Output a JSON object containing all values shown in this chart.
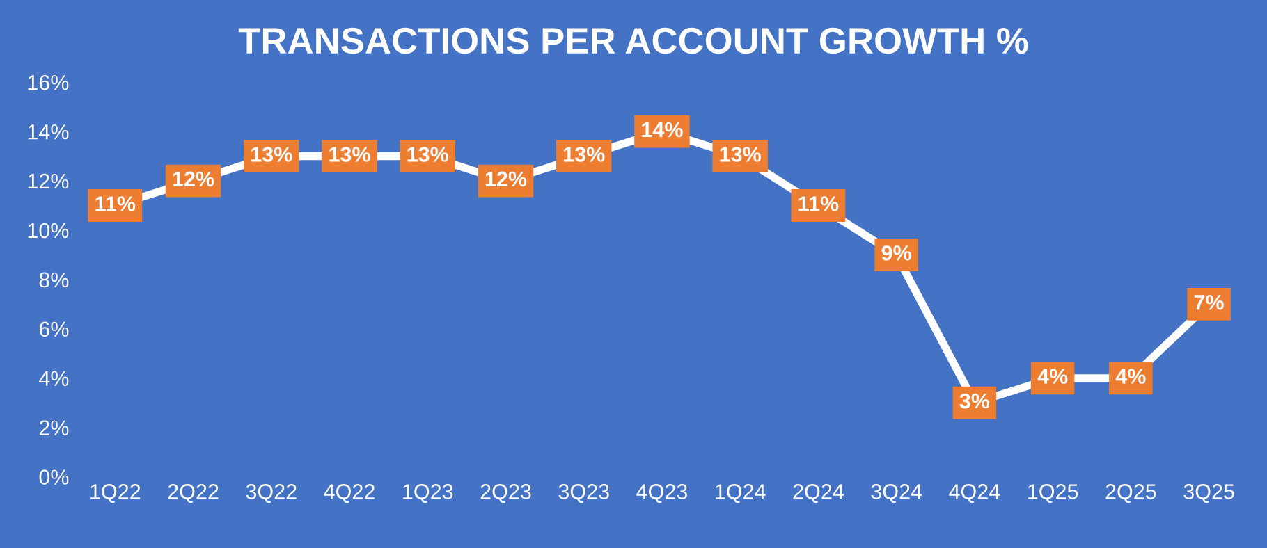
{
  "chart_data": {
    "type": "line",
    "title": "TRANSACTIONS PER ACCOUNT GROWTH %",
    "categories": [
      "1Q22",
      "2Q22",
      "3Q22",
      "4Q22",
      "1Q23",
      "2Q23",
      "3Q23",
      "4Q23",
      "1Q24",
      "2Q24",
      "3Q24",
      "4Q24",
      "1Q25",
      "2Q25",
      "3Q25"
    ],
    "series": [
      {
        "color": "#ffffff",
        "values": [
          11,
          12,
          13,
          13,
          13,
          12,
          13,
          14,
          13,
          11,
          9,
          3,
          4,
          4,
          7
        ],
        "value_labels": [
          "11%",
          "12%",
          "13%",
          "13%",
          "13%",
          "12%",
          "13%",
          "14%",
          "13%",
          "11%",
          "9%",
          "3%",
          "4%",
          "4%",
          "7%"
        ]
      }
    ],
    "ylim": [
      0,
      16
    ],
    "yticks": [
      {
        "value": 0,
        "label": "0%"
      },
      {
        "value": 2,
        "label": "2%"
      },
      {
        "value": 4,
        "label": "4%"
      },
      {
        "value": 6,
        "label": "6%"
      },
      {
        "value": 8,
        "label": "8%"
      },
      {
        "value": 10,
        "label": "10%"
      },
      {
        "value": 12,
        "label": "12%"
      },
      {
        "value": 14,
        "label": "14%"
      },
      {
        "value": 16,
        "label": "16%"
      }
    ],
    "grid": false,
    "legend": false,
    "marker": "square",
    "line_style": "solid"
  }
}
